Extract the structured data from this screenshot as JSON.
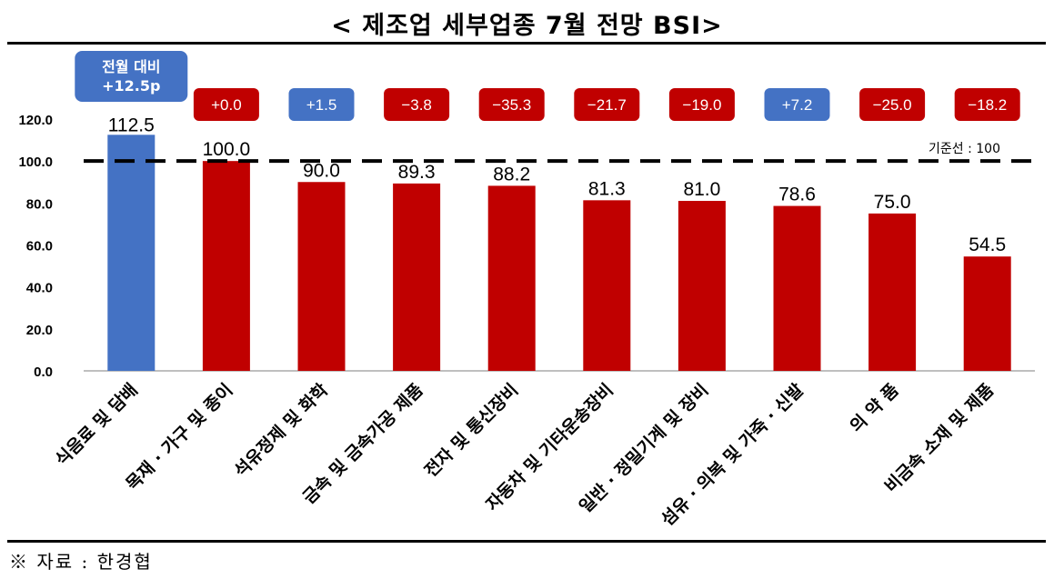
{
  "title": "< 제조업 세부업종 7월 전망 BSI>",
  "source": "※ 자료 : 한경협",
  "colors": {
    "red": "#C00000",
    "blue": "#4472C4",
    "axis": "#000000"
  },
  "chart_data": {
    "type": "bar",
    "categories": [
      "식음료 및 담배",
      "목재 · 가구 및 종이",
      "석유정제 및 화학",
      "금속 및 금속가공 제품",
      "전자 및 통신장비",
      "자동차 및 기타운송장비",
      "일반 · 정밀기계 및 장비",
      "섬유 · 의복 및 가죽 · 신발",
      "의 약 품",
      "비금속 소재 및 제품"
    ],
    "values": [
      112.5,
      100.0,
      90.0,
      89.3,
      88.2,
      81.3,
      81.0,
      78.6,
      75.0,
      54.5
    ],
    "value_labels": [
      "112.5",
      "100.0",
      "90.0",
      "89.3",
      "88.2",
      "81.3",
      "81.0",
      "78.6",
      "75.0",
      "54.5"
    ],
    "change_labels": [
      "전월 대비\n+12.5p",
      "+0.0",
      "+1.5",
      "−3.8",
      "−35.3",
      "−21.7",
      "−19.0",
      "+7.2",
      "−25.0",
      "−18.2"
    ],
    "change_colors": [
      "blue",
      "red",
      "blue",
      "red",
      "red",
      "red",
      "red",
      "blue",
      "red",
      "red"
    ],
    "bar_colors": [
      "blue",
      "red",
      "red",
      "red",
      "red",
      "red",
      "red",
      "red",
      "red",
      "red"
    ],
    "yticks": [
      "0.0",
      "20.0",
      "40.0",
      "60.0",
      "80.0",
      "100.0",
      "120.0"
    ],
    "ylim": [
      0,
      120
    ],
    "reference_line": {
      "value": 100,
      "label": "기준선 : 100",
      "style": "dashed"
    },
    "grid": false,
    "legend": "none"
  }
}
